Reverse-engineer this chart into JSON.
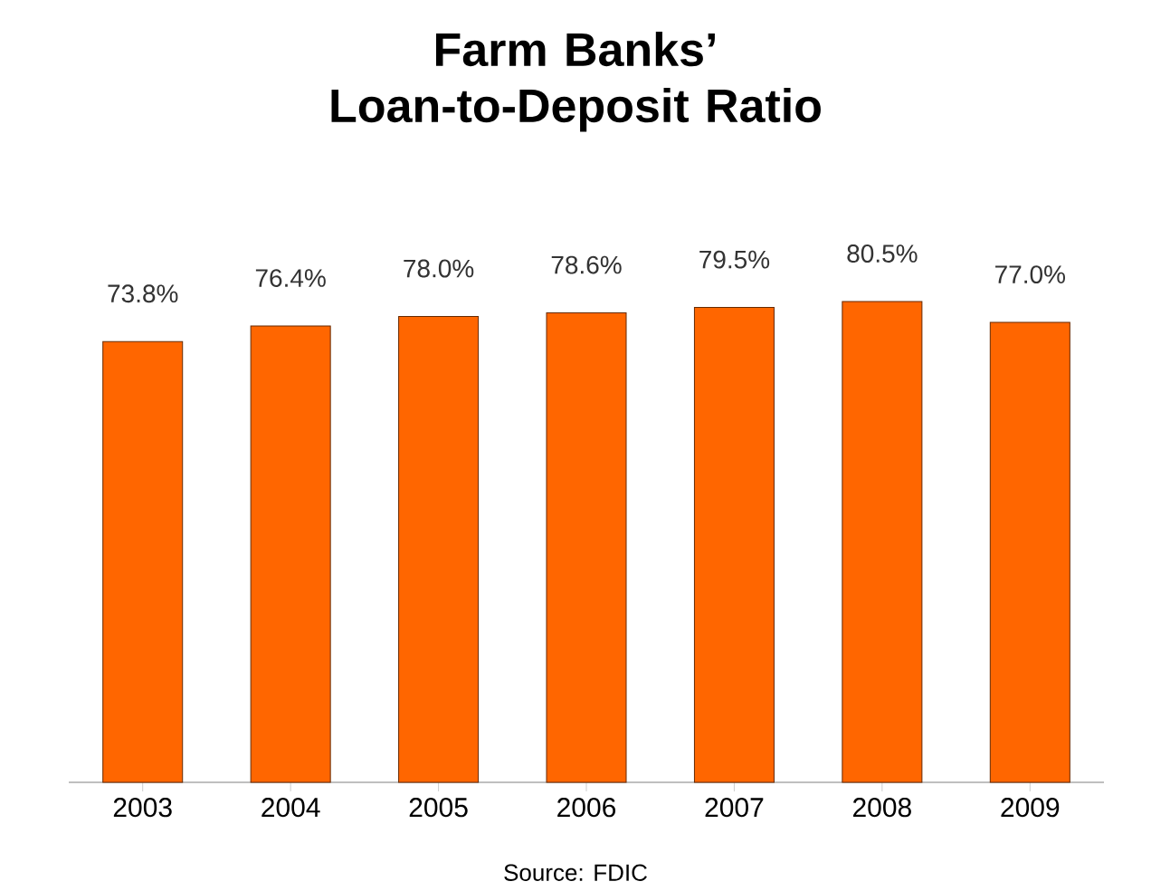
{
  "chart_data": {
    "type": "bar",
    "title": "Farm Banks’\nLoan-to-Deposit Ratio",
    "categories": [
      "2003",
      "2004",
      "2005",
      "2006",
      "2007",
      "2008",
      "2009"
    ],
    "values": [
      73.8,
      76.4,
      78.0,
      78.6,
      79.5,
      80.5,
      77.0
    ],
    "value_labels": [
      "73.8%",
      "76.4%",
      "78.0%",
      "78.6%",
      "79.5%",
      "80.5%",
      "77.0%"
    ],
    "color": "#ff6600",
    "annotations": [
      "Source: FDIC"
    ]
  }
}
